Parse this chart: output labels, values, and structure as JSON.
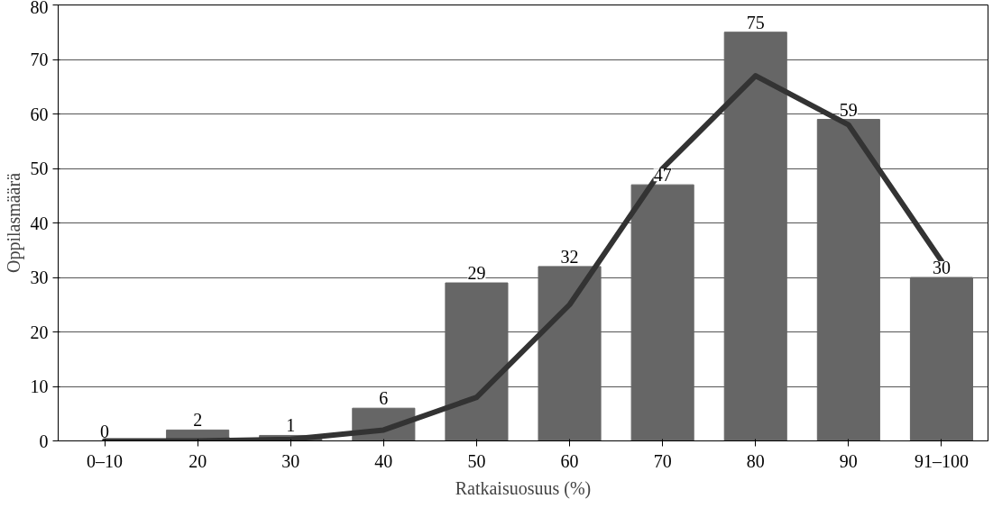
{
  "chart_data": {
    "type": "bar",
    "xlabel": "Ratkaisuosuus (%)",
    "ylabel": "Oppilasmäärä",
    "categories": [
      "0–10",
      "20",
      "30",
      "40",
      "50",
      "60",
      "70",
      "80",
      "90",
      "91–100"
    ],
    "series": [
      {
        "color": "#666666",
        "values": [
          0,
          2,
          1,
          6,
          29,
          32,
          47,
          75,
          59,
          30
        ],
        "data_labels": true
      },
      {
        "type": "line",
        "color": "#333333",
        "values": [
          0,
          0,
          0.3,
          2,
          8,
          25,
          50,
          67,
          58,
          33
        ]
      }
    ],
    "ylim": [
      0,
      80
    ],
    "yticks": [
      0,
      10,
      20,
      30,
      40,
      50,
      60,
      70,
      80
    ],
    "grid": "y"
  }
}
